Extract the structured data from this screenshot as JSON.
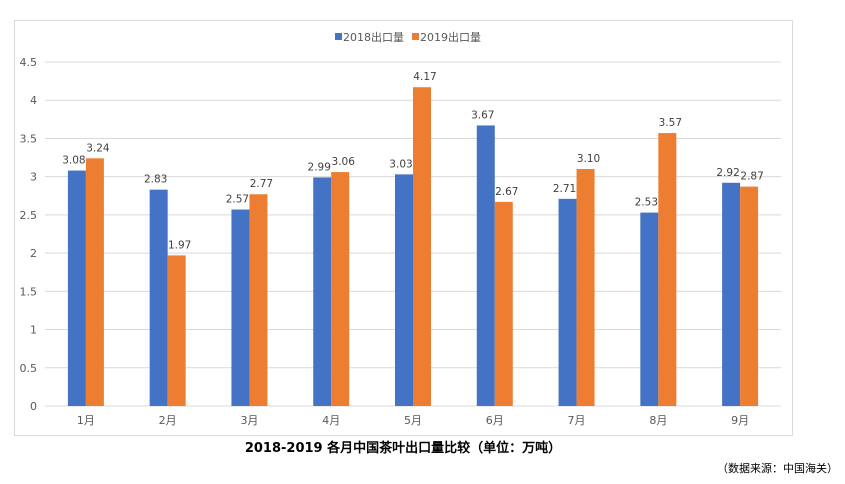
{
  "chart_data": {
    "type": "bar",
    "title": "2018-2019 各月中国茶叶出口量比较（单位：万吨）",
    "source_note": "（数据来源：中国海关）",
    "categories": [
      "1月",
      "2月",
      "3月",
      "4月",
      "5月",
      "6月",
      "7月",
      "8月",
      "9月"
    ],
    "series": [
      {
        "name": "2018出口量",
        "color": "#4472C4",
        "values": [
          3.08,
          2.83,
          2.57,
          2.99,
          3.03,
          3.67,
          2.71,
          2.53,
          2.92
        ]
      },
      {
        "name": "2019出口量",
        "color": "#ED7D31",
        "values": [
          3.24,
          1.97,
          2.77,
          3.06,
          4.17,
          2.67,
          3.1,
          3.57,
          2.87
        ]
      }
    ],
    "ylim": [
      0,
      4.5
    ],
    "yticks": [
      "0",
      "0.5",
      "1",
      "1.5",
      "2",
      "2.5",
      "3",
      "3.5",
      "4",
      "4.5"
    ],
    "grid": true,
    "legend_position": "top",
    "xlabel": "",
    "ylabel": ""
  }
}
